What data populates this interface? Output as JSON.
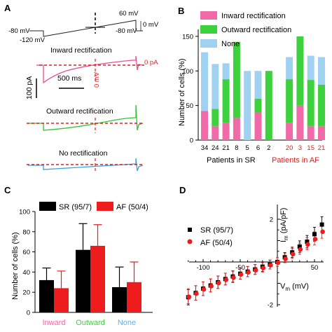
{
  "panels": {
    "a": "A",
    "b": "B",
    "c": "C",
    "d": "D"
  },
  "panel_a": {
    "protocol_labels": [
      "-80 mV",
      "-120 mV",
      "60 mV",
      "-80 mV",
      "0 mV"
    ],
    "trace_titles": [
      "Inward rectification",
      "Outward rectification",
      "No rectification"
    ],
    "scale_time": "500 ms",
    "scale_current": "100 pA",
    "zero_mv": "0 mV",
    "zero_pa": "0 pA",
    "trace_colors": {
      "inward": "#e8508c",
      "outward": "#2fc62f",
      "none": "#3aa2e0",
      "dash": "#e02020"
    }
  },
  "chart_data": [
    {
      "type": "bar",
      "panel": "B",
      "stacked": true,
      "ylabel": "Number of cells (%)",
      "ylim": [
        0,
        160
      ],
      "yticks": [
        0,
        50,
        100,
        150
      ],
      "groups": [
        {
          "label": "Patients in SR",
          "color": "#000000",
          "categories": [
            "34",
            "24",
            "21",
            "8",
            "5",
            "6",
            "2"
          ]
        },
        {
          "label": "Patients in AF",
          "color": "#e02020",
          "categories": [
            "20",
            "3",
            "15",
            "21"
          ]
        }
      ],
      "series": [
        {
          "name": "Inward rectification",
          "color": "#f06aa8",
          "values": [
            42,
            20,
            25,
            32,
            0,
            40,
            0,
            25,
            50,
            20,
            20
          ]
        },
        {
          "name": "Outward rectification",
          "color": "#3ed13e",
          "values": [
            0,
            25,
            63,
            110,
            0,
            20,
            100,
            63,
            100,
            67,
            60
          ]
        },
        {
          "name": "None",
          "color": "#9fd2f0",
          "values": [
            85,
            65,
            23,
            0,
            100,
            40,
            0,
            32,
            0,
            35,
            40
          ]
        }
      ]
    },
    {
      "type": "bar",
      "panel": "C",
      "ylabel": "Number of cells (%)",
      "ylim": [
        0,
        100
      ],
      "yticks": [
        0,
        20,
        40,
        60,
        80,
        100
      ],
      "categories": [
        "Inward",
        "Outward",
        "None"
      ],
      "category_colors": [
        "#f06aa8",
        "#3ed13e",
        "#6ab0e6"
      ],
      "series": [
        {
          "name": "SR (95/7)",
          "color": "#000000",
          "values": [
            32,
            62,
            25
          ],
          "errors": [
            12,
            26,
            20
          ]
        },
        {
          "name": "AF (50/4)",
          "color": "#ee1c1c",
          "values": [
            24,
            66,
            30
          ],
          "errors": [
            17,
            21,
            20
          ]
        }
      ]
    },
    {
      "type": "scatter",
      "panel": "D",
      "xlabel": "V",
      "xlabel_sub": "m",
      "xlabel_unit": " (mV)",
      "ylabel": "I",
      "ylabel_sub": "m",
      "ylabel_unit": " (pA/pF)",
      "xlim": [
        -125,
        65
      ],
      "ylim": [
        -2.4,
        2.4
      ],
      "xticks": [
        -100,
        -50,
        50
      ],
      "yticks": [
        -2,
        2
      ],
      "series": [
        {
          "name": "SR (95/7)",
          "color": "#000000",
          "marker": "square",
          "x": [
            -120,
            -110,
            -100,
            -90,
            -80,
            -70,
            -60,
            -50,
            -40,
            -30,
            -20,
            -10,
            0,
            10,
            20,
            30,
            40,
            50,
            60
          ],
          "y": [
            -1.65,
            -1.45,
            -1.25,
            -1.1,
            -0.95,
            -0.8,
            -0.68,
            -0.55,
            -0.45,
            -0.35,
            -0.22,
            -0.12,
            0.0,
            0.22,
            0.45,
            0.72,
            0.95,
            1.3,
            1.75
          ]
        },
        {
          "name": "AF (50/4)",
          "color": "#ee1c1c",
          "marker": "circle",
          "x": [
            -120,
            -110,
            -100,
            -90,
            -80,
            -70,
            -60,
            -50,
            -40,
            -30,
            -20,
            -10,
            0,
            10,
            20,
            30,
            40,
            50,
            60
          ],
          "y": [
            -1.6,
            -1.45,
            -1.25,
            -1.1,
            -0.95,
            -0.8,
            -0.7,
            -0.55,
            -0.45,
            -0.35,
            -0.25,
            -0.12,
            0.0,
            0.18,
            0.4,
            0.62,
            0.85,
            1.1,
            1.45
          ]
        }
      ]
    }
  ]
}
